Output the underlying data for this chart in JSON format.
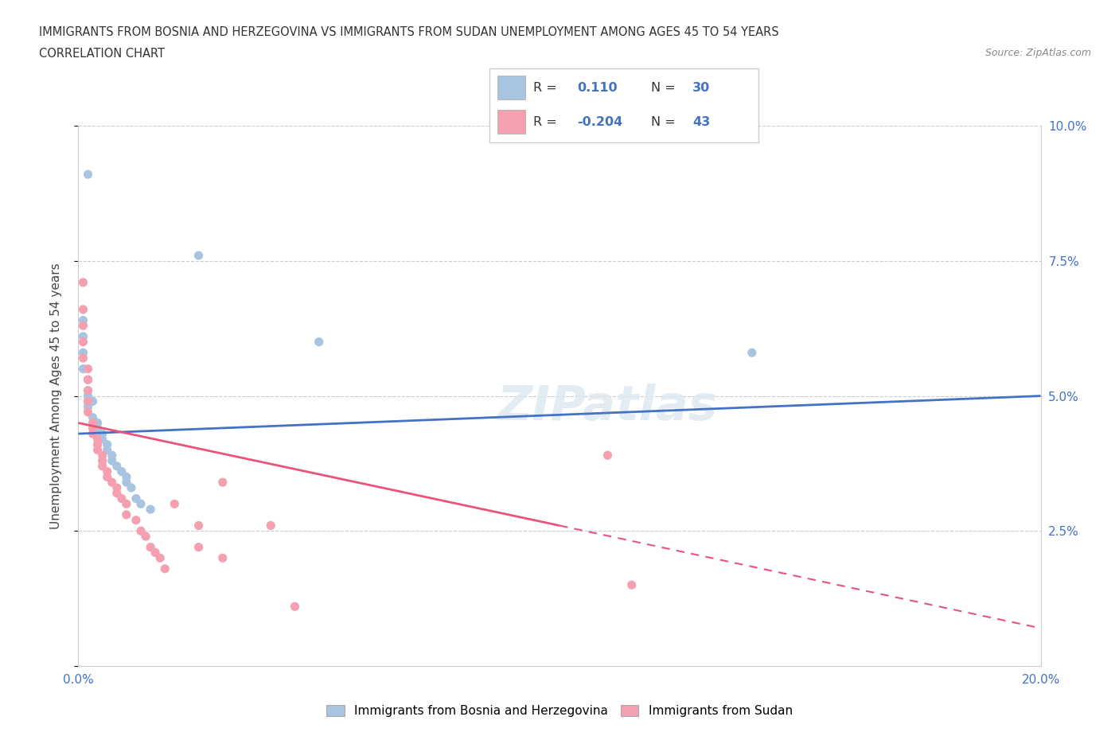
{
  "title_line1": "IMMIGRANTS FROM BOSNIA AND HERZEGOVINA VS IMMIGRANTS FROM SUDAN UNEMPLOYMENT AMONG AGES 45 TO 54 YEARS",
  "title_line2": "CORRELATION CHART",
  "source_text": "Source: ZipAtlas.com",
  "ylabel": "Unemployment Among Ages 45 to 54 years",
  "xlim": [
    0.0,
    0.2
  ],
  "ylim": [
    0.0,
    0.1
  ],
  "xticks": [
    0.0,
    0.04,
    0.08,
    0.12,
    0.16,
    0.2
  ],
  "xticklabels": [
    "0.0%",
    "",
    "",
    "",
    "",
    "20.0%"
  ],
  "yticks": [
    0.0,
    0.025,
    0.05,
    0.075,
    0.1
  ],
  "yticklabels": [
    "",
    "2.5%",
    "5.0%",
    "7.5%",
    "10.0%"
  ],
  "bosnia_color": "#a8c4e0",
  "sudan_color": "#f4a0b0",
  "bosnia_line_color": "#4472c4",
  "sudan_line_color": "#e8547a",
  "R_bosnia": "0.110",
  "N_bosnia": "30",
  "R_sudan": "-0.204",
  "N_sudan": "43",
  "bosnia_line": [
    0.0,
    0.043,
    0.2,
    0.05
  ],
  "sudan_line_solid": [
    0.0,
    0.045,
    0.1,
    0.026
  ],
  "sudan_line_dashed": [
    0.1,
    0.026,
    0.2,
    0.007
  ],
  "bosnia_points": [
    [
      0.002,
      0.091
    ],
    [
      0.002,
      0.05
    ],
    [
      0.001,
      0.064
    ],
    [
      0.001,
      0.061
    ],
    [
      0.001,
      0.058
    ],
    [
      0.001,
      0.055
    ],
    [
      0.002,
      0.053
    ],
    [
      0.002,
      0.051
    ],
    [
      0.003,
      0.049
    ],
    [
      0.002,
      0.048
    ],
    [
      0.003,
      0.046
    ],
    [
      0.004,
      0.045
    ],
    [
      0.004,
      0.044
    ],
    [
      0.005,
      0.043
    ],
    [
      0.005,
      0.042
    ],
    [
      0.006,
      0.041
    ],
    [
      0.006,
      0.04
    ],
    [
      0.007,
      0.039
    ],
    [
      0.007,
      0.038
    ],
    [
      0.008,
      0.037
    ],
    [
      0.009,
      0.036
    ],
    [
      0.01,
      0.035
    ],
    [
      0.01,
      0.034
    ],
    [
      0.011,
      0.033
    ],
    [
      0.012,
      0.031
    ],
    [
      0.013,
      0.03
    ],
    [
      0.015,
      0.029
    ],
    [
      0.025,
      0.076
    ],
    [
      0.05,
      0.06
    ],
    [
      0.14,
      0.058
    ]
  ],
  "sudan_points": [
    [
      0.001,
      0.071
    ],
    [
      0.001,
      0.066
    ],
    [
      0.001,
      0.063
    ],
    [
      0.001,
      0.06
    ],
    [
      0.001,
      0.057
    ],
    [
      0.002,
      0.055
    ],
    [
      0.002,
      0.053
    ],
    [
      0.002,
      0.051
    ],
    [
      0.002,
      0.049
    ],
    [
      0.002,
      0.047
    ],
    [
      0.003,
      0.045
    ],
    [
      0.003,
      0.044
    ],
    [
      0.003,
      0.043
    ],
    [
      0.004,
      0.042
    ],
    [
      0.004,
      0.041
    ],
    [
      0.004,
      0.04
    ],
    [
      0.005,
      0.039
    ],
    [
      0.005,
      0.038
    ],
    [
      0.005,
      0.037
    ],
    [
      0.006,
      0.036
    ],
    [
      0.006,
      0.035
    ],
    [
      0.007,
      0.034
    ],
    [
      0.008,
      0.033
    ],
    [
      0.008,
      0.032
    ],
    [
      0.009,
      0.031
    ],
    [
      0.01,
      0.03
    ],
    [
      0.01,
      0.028
    ],
    [
      0.012,
      0.027
    ],
    [
      0.013,
      0.025
    ],
    [
      0.014,
      0.024
    ],
    [
      0.015,
      0.022
    ],
    [
      0.016,
      0.021
    ],
    [
      0.017,
      0.02
    ],
    [
      0.018,
      0.018
    ],
    [
      0.02,
      0.03
    ],
    [
      0.025,
      0.026
    ],
    [
      0.025,
      0.022
    ],
    [
      0.03,
      0.034
    ],
    [
      0.03,
      0.02
    ],
    [
      0.04,
      0.026
    ],
    [
      0.045,
      0.011
    ],
    [
      0.11,
      0.039
    ],
    [
      0.115,
      0.015
    ]
  ]
}
